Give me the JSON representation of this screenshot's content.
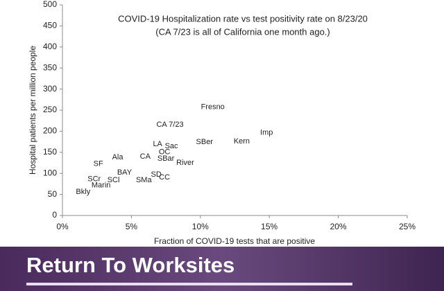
{
  "chart_data": {
    "type": "scatter",
    "title": "COVID-19 Hospitalization rate vs test positivity rate on 8/23/20",
    "subtitle": "(CA 7/23 is all of California one month ago.)",
    "x_label": "Fraction of COVID-19 tests that are positive",
    "y_label": "Hospital patients per million people",
    "point_labels": [
      "Fresno",
      "CA 7/23",
      "Imp",
      "Kern",
      "SBer",
      "LA",
      "Sac",
      "OC",
      "CA",
      "SBar",
      "Ala",
      "River",
      "SF",
      "BAY",
      "SD",
      "CC",
      "SMa",
      "SCr",
      "SCl",
      "Marin",
      "Bkly"
    ],
    "x": [
      10.9,
      7.8,
      14.8,
      13.0,
      10.3,
      6.9,
      7.9,
      7.4,
      6.0,
      7.5,
      4.0,
      8.9,
      2.6,
      4.5,
      6.8,
      7.4,
      5.9,
      2.3,
      3.7,
      2.8,
      1.5
    ],
    "values": [
      257,
      215,
      196,
      176,
      174,
      169,
      164,
      150,
      140,
      135,
      138,
      125,
      122,
      102,
      97,
      90,
      84,
      86,
      84,
      71,
      56
    ],
    "color": "#222222",
    "xlim": [
      0,
      25
    ],
    "xticks": [
      {
        "value": 0,
        "label": "0%"
      },
      {
        "value": 5,
        "label": "5%"
      },
      {
        "value": 10,
        "label": "10%"
      },
      {
        "value": 15,
        "label": "15%"
      },
      {
        "value": 20,
        "label": "20%"
      },
      {
        "value": 25,
        "label": "25%"
      }
    ],
    "ylim": [
      0,
      500
    ],
    "yticks": [
      0,
      50,
      100,
      150,
      200,
      250,
      300,
      350,
      400,
      450,
      500
    ]
  },
  "banner": {
    "title": "Return To Worksites"
  }
}
